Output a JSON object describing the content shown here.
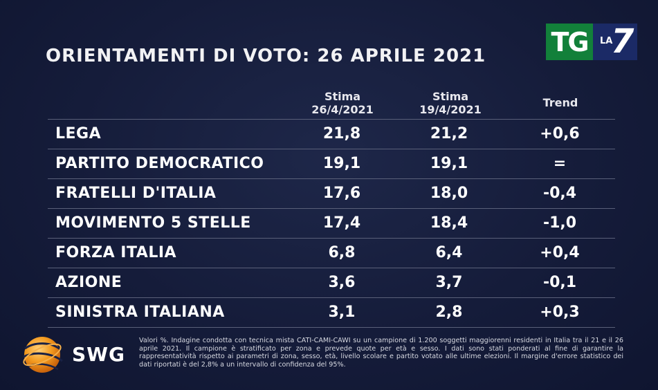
{
  "title": "ORIENTAMENTI DI VOTO: 26 APRILE 2021",
  "logo": {
    "tg": "TG",
    "la": "LA",
    "seven": "7",
    "tg_color": "#12803a",
    "la7_color": "#1b2a66"
  },
  "columns": {
    "col1_line1": "Stima",
    "col1_line2": "26/4/2021",
    "col2_line1": "Stima",
    "col2_line2": "19/4/2021",
    "col3": "Trend"
  },
  "rows": [
    {
      "party": "LEGA",
      "v1": "21,8",
      "v2": "21,2",
      "trend": "+0,6"
    },
    {
      "party": "PARTITO DEMOCRATICO",
      "v1": "19,1",
      "v2": "19,1",
      "trend": "="
    },
    {
      "party": "FRATELLI D'ITALIA",
      "v1": "17,6",
      "v2": "18,0",
      "trend": "-0,4"
    },
    {
      "party": "MOVIMENTO 5 STELLE",
      "v1": "17,4",
      "v2": "18,4",
      "trend": "-1,0"
    },
    {
      "party": "FORZA ITALIA",
      "v1": "6,8",
      "v2": "6,4",
      "trend": "+0,4"
    },
    {
      "party": "AZIONE",
      "v1": "3,6",
      "v2": "3,7",
      "trend": "-0,1"
    },
    {
      "party": "SINISTRA ITALIANA",
      "v1": "3,1",
      "v2": "2,8",
      "trend": "+0,3"
    }
  ],
  "footer": {
    "brand": "SWG",
    "brand_icon": "orange-globe-icon",
    "note": "Valori %. Indagine condotta con tecnica mista CATI-CAMI-CAWI su un campione di 1.200 soggetti maggiorenni residenti in Italia tra il 21 e il 26 aprile 2021. Il campione è stratificato per zona e prevede quote per età e sesso. I dati sono stati ponderati al fine di garantire la rappresentatività rispetto ai parametri di zona, sesso, età, livello scolare e partito votato alle ultime elezioni. Il margine d'errore statistico dei dati riportati è del 2,8% a un intervallo di confidenza del 95%."
  },
  "colors": {
    "background": "#141b38",
    "rule": "#5a6079",
    "text": "#ffffff"
  }
}
